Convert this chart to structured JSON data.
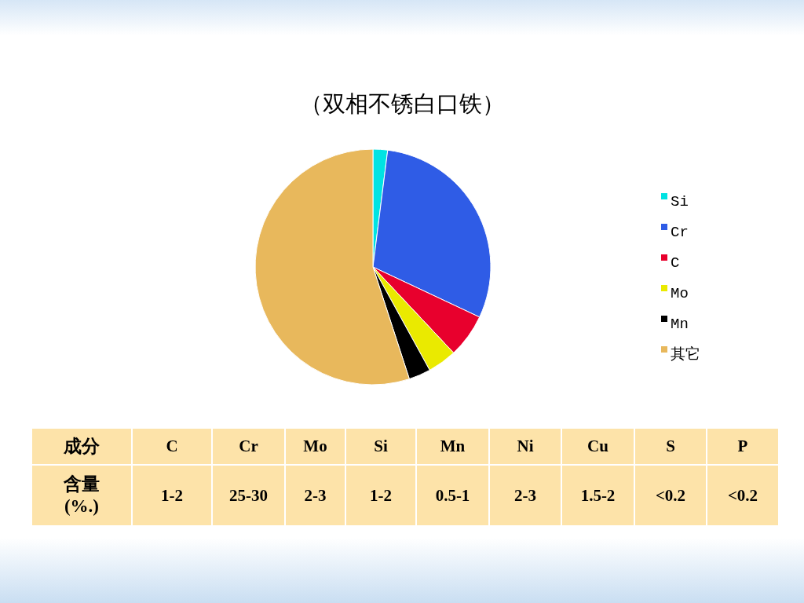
{
  "chart_data": [
    {
      "type": "pie",
      "title": "（双相不锈白口铁）",
      "categories": [
        "Si",
        "Cr",
        "C",
        "Mo",
        "Mn",
        "其它"
      ],
      "values": [
        2,
        30,
        6,
        4,
        3,
        55
      ],
      "colors": [
        "#00e3e3",
        "#2f5ce6",
        "#e8002d",
        "#eaea00",
        "#000000",
        "#e8b85c"
      ],
      "legend": "right"
    },
    {
      "type": "other",
      "xlabel": "成分",
      "ylabel": "含量(%.)",
      "categories": [
        "C",
        "Cr",
        "Mo",
        "Si",
        "Mn",
        "Ni",
        "Cu",
        "S",
        "P"
      ],
      "value_labels": [
        "1-2",
        "25-30",
        "2-3",
        "1-2",
        "0.5-1",
        "2-3",
        "1.5-2",
        "<0.2",
        "<0.2"
      ]
    }
  ]
}
